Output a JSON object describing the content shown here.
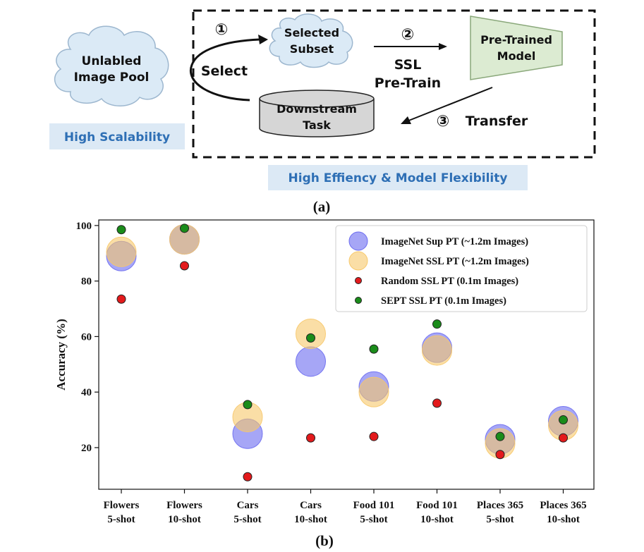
{
  "diagram": {
    "pool_line1": "Unlabled",
    "pool_line2": "Image Pool",
    "subset_line1": "Selected",
    "subset_line2": "Subset",
    "model_line1": "Pre-Trained",
    "model_line2": "Model",
    "task_line1": "Downstream",
    "task_line2": "Task",
    "step1_symbol": "①",
    "step2_symbol": "②",
    "step3_symbol": "③",
    "select_label": "Select",
    "ssl_line1": "SSL",
    "ssl_line2": "Pre-Train",
    "transfer_label": "Transfer",
    "scalability_label": "High Scalability",
    "efficiency_label": "High Effiency & Model Flexibility",
    "caption_a": "(a)"
  },
  "caption_b": "(b)",
  "colors": {
    "cloud_fill": "#dbeaf6",
    "label_fill": "#dce9f5",
    "label_text": "#2e6fb5",
    "model_fill": "#dcebd2",
    "cylinder_fill": "#d6d6d6",
    "imagenet_sup": "#6b6bf0",
    "imagenet_ssl": "#f7c86a",
    "random_ssl": "#e31a1c",
    "sept_ssl": "#1a8c1a"
  },
  "chart_data": {
    "type": "scatter",
    "ylabel": "Accuracy (%)",
    "ylim": [
      5,
      102
    ],
    "yticks": [
      20,
      40,
      60,
      80,
      100
    ],
    "legend_position": "top-right",
    "categories": [
      [
        "Flowers",
        "5-shot"
      ],
      [
        "Flowers",
        "10-shot"
      ],
      [
        "Cars",
        "5-shot"
      ],
      [
        "Cars",
        "10-shot"
      ],
      [
        "Food 101",
        "5-shot"
      ],
      [
        "Food 101",
        "10-shot"
      ],
      [
        "Places 365",
        "5-shot"
      ],
      [
        "Places 365",
        "10-shot"
      ]
    ],
    "series": [
      {
        "name": "ImageNet Sup PT (~1.2m Images)",
        "marker": "large",
        "color": "#6b6bf0",
        "values": [
          89,
          95,
          25,
          51,
          42,
          56,
          23,
          29.5
        ]
      },
      {
        "name": "ImageNet SSL PT (~1.2m Images)",
        "marker": "large",
        "color": "#f7c86a",
        "values": [
          90.5,
          95,
          31,
          61,
          40,
          55,
          21.5,
          28
        ]
      },
      {
        "name": "Random SSL PT (0.1m Images)",
        "marker": "small",
        "color": "#e31a1c",
        "values": [
          73.5,
          85.5,
          9.5,
          23.5,
          24,
          36,
          17.5,
          23.5
        ]
      },
      {
        "name": "SEPT SSL PT (0.1m Images)",
        "marker": "small",
        "color": "#1a8c1a",
        "values": [
          98.5,
          99,
          35.5,
          59.5,
          55.5,
          64.5,
          24,
          30
        ]
      }
    ]
  }
}
